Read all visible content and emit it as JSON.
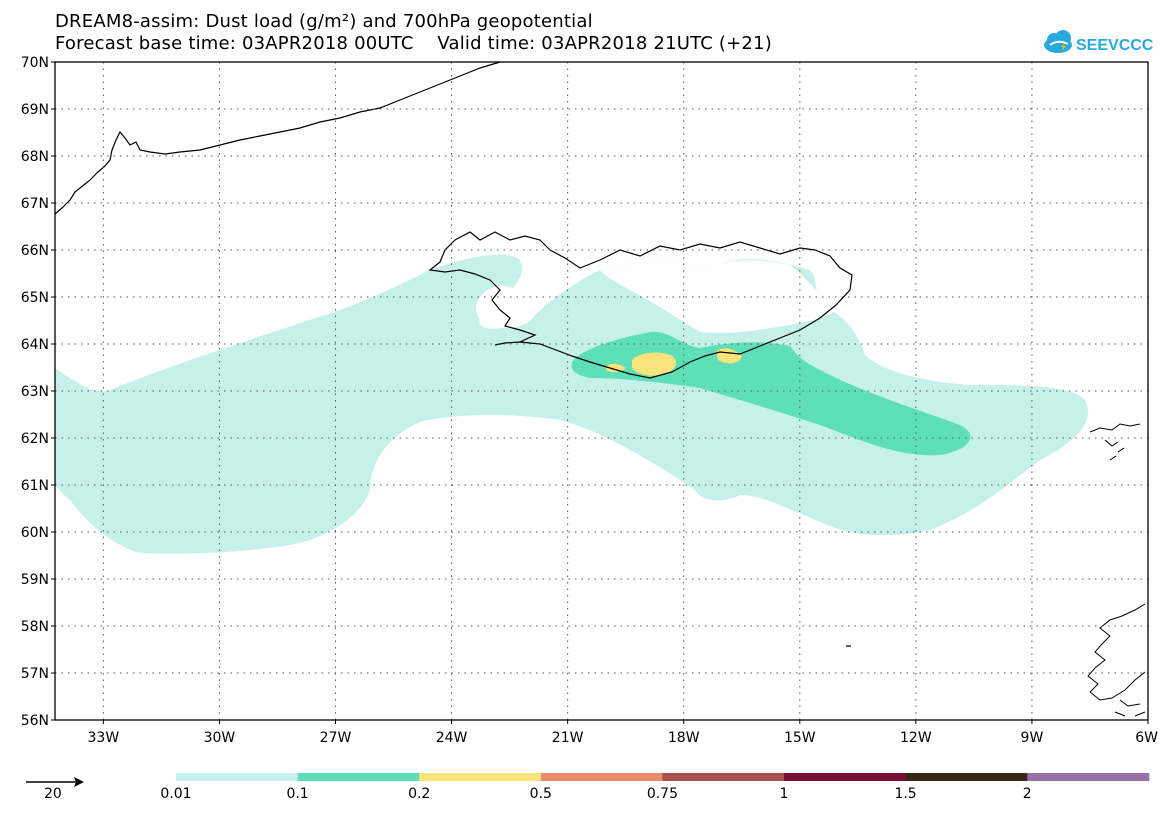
{
  "title": {
    "line1": "DREAM8-assim: Dust load (g/m²) and 700hPa geopotential",
    "line2": "Forecast base time: 03APR2018 00UTC    Valid time: 03APR2018 21UTC (+21)"
  },
  "logo": {
    "text": "SEEVCCC",
    "color": "#29a8e0",
    "icon": "cloud-icon"
  },
  "axes": {
    "lat_labels": [
      "70N",
      "69N",
      "68N",
      "67N",
      "66N",
      "65N",
      "64N",
      "63N",
      "62N",
      "61N",
      "60N",
      "59N",
      "58N",
      "57N",
      "56N"
    ],
    "lat_values": [
      70,
      69,
      68,
      67,
      66,
      65,
      64,
      63,
      62,
      61,
      60,
      59,
      58,
      57,
      56
    ],
    "lon_labels": [
      "33W",
      "30W",
      "27W",
      "24W",
      "21W",
      "18W",
      "15W",
      "12W",
      "9W",
      "6W"
    ],
    "lon_values": [
      -33,
      -30,
      -27,
      -24,
      -21,
      -18,
      -15,
      -12,
      -9,
      -6
    ],
    "lon_range": [
      -34.25,
      -6
    ],
    "lat_range": [
      56,
      70
    ],
    "gridlines": "dotted"
  },
  "legend": {
    "arrow_label": "20",
    "labels": [
      "0.01",
      "0.1",
      "0.2",
      "0.5",
      "0.75",
      "1",
      "1.5",
      "2"
    ],
    "colors": [
      "#c6f0ea",
      "#5edfb7",
      "#f8e47a",
      "#e98c6a",
      "#a8504a",
      "#7a0e34",
      "#3a2616",
      "#9670a6"
    ]
  },
  "colors": {
    "coast": "#000000",
    "frame": "#000000"
  }
}
